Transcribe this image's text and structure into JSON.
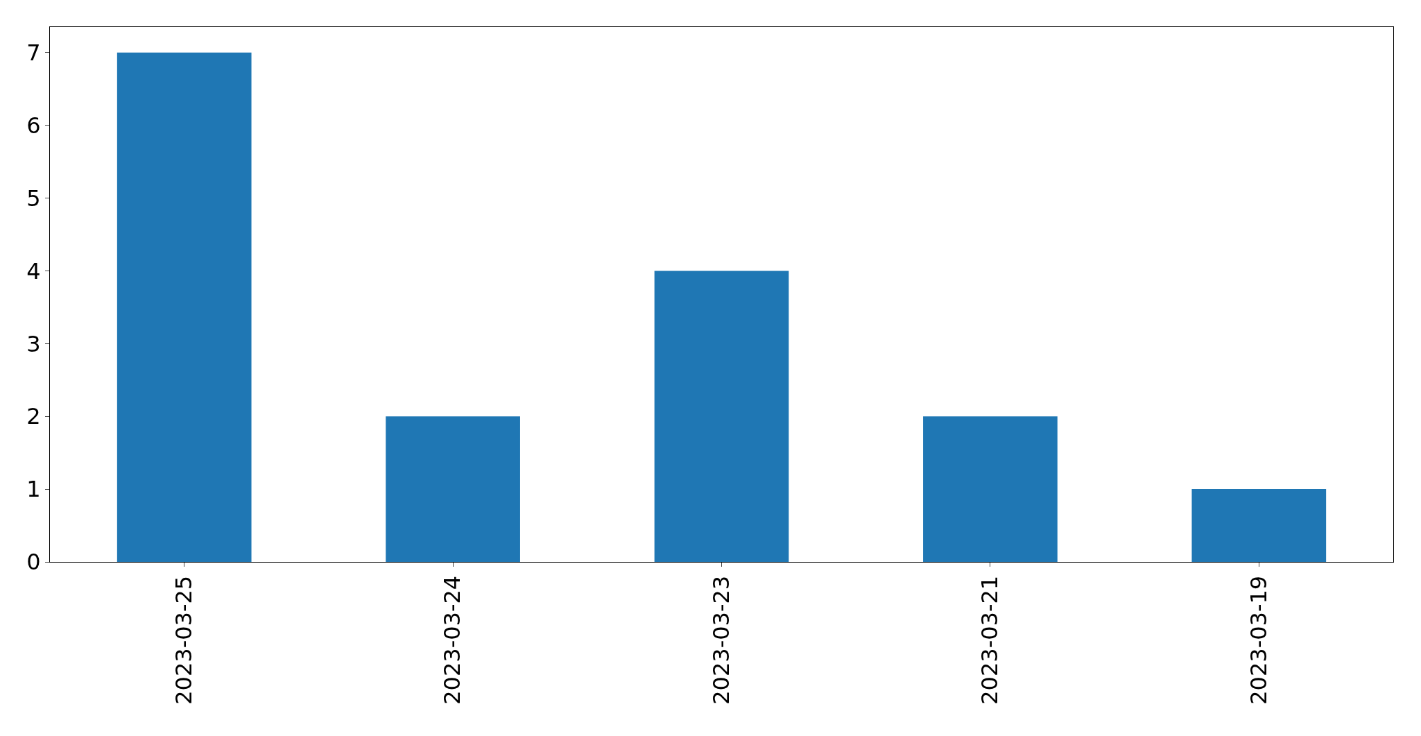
{
  "chart_data": {
    "type": "bar",
    "categories": [
      "2023-03-25",
      "2023-03-24",
      "2023-03-23",
      "2023-03-21",
      "2023-03-19"
    ],
    "values": [
      7,
      2,
      4,
      2,
      1
    ],
    "color": "#1f77b4",
    "ylim": [
      0,
      7.35
    ],
    "yticks": [
      0,
      1,
      2,
      3,
      4,
      5,
      6,
      7
    ]
  }
}
